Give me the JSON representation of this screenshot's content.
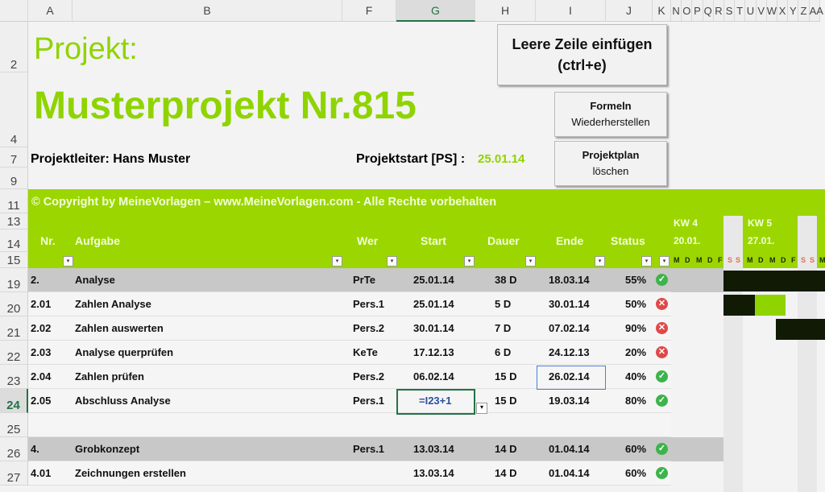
{
  "columns": [
    "A",
    "B",
    "F",
    "G",
    "H",
    "I",
    "J",
    "K",
    "N",
    "O",
    "P",
    "Q",
    "R",
    "S",
    "T",
    "U",
    "V",
    "W",
    "X",
    "Y",
    "Z",
    "AA"
  ],
  "row_numbers": [
    "2",
    "4",
    "7",
    "9",
    "11",
    "13",
    "14",
    "15",
    "19",
    "20",
    "21",
    "22",
    "23",
    "24",
    "25",
    "26",
    "27"
  ],
  "title": {
    "label": "Projekt:",
    "name": "Musterprojekt Nr.815"
  },
  "leader": "Projektleiter: Hans Muster",
  "start": {
    "label": "Projektstart [PS] :",
    "value": "25.01.14"
  },
  "buttons": {
    "insert_line1": "Leere Zeile einfügen",
    "insert_line2": "(ctrl+e)",
    "restore_line1": "Formeln",
    "restore_line2": "Wiederherstellen",
    "delete_line1": "Projektplan",
    "delete_line2": "löschen"
  },
  "copyright": "© Copyright by MeineVorlagen – www.MeineVorlagen.com - Alle Rechte vorbehalten",
  "headers": {
    "nr": "Nr.",
    "task": "Aufgabe",
    "who": "Wer",
    "start": "Start",
    "duration": "Dauer",
    "end": "Ende",
    "status": "Status"
  },
  "gantt": {
    "weeks": [
      {
        "kw": "KW 4",
        "date": "20.01."
      },
      {
        "kw": "KW 5",
        "date": "27.01."
      }
    ],
    "days": [
      "M",
      "D",
      "M",
      "D",
      "F",
      "S",
      "S",
      "M",
      "D",
      "M",
      "D",
      "F",
      "S",
      "S",
      "M"
    ]
  },
  "rows": [
    {
      "nr": "2.",
      "task": "Analyse",
      "who": "PrTe",
      "start": "25.01.14",
      "duration": "38 D",
      "end": "18.03.14",
      "status": "55%",
      "icon": "ok",
      "group": true
    },
    {
      "nr": "2.01",
      "task": "Zahlen Analyse",
      "who": "Pers.1",
      "start": "25.01.14",
      "duration": "5 D",
      "end": "30.01.14",
      "status": "50%",
      "icon": "x"
    },
    {
      "nr": "2.02",
      "task": "Zahlen auswerten",
      "who": "Pers.2",
      "start": "30.01.14",
      "duration": "7 D",
      "end": "07.02.14",
      "status": "90%",
      "icon": "x"
    },
    {
      "nr": "2.03",
      "task": "Analyse querprüfen",
      "who": "KeTe",
      "start": "17.12.13",
      "duration": "6 D",
      "end": "24.12.13",
      "status": "20%",
      "icon": "x"
    },
    {
      "nr": "2.04",
      "task": "Zahlen prüfen",
      "who": "Pers.2",
      "start": "06.02.14",
      "duration": "15 D",
      "end": "26.02.14",
      "status": "40%",
      "icon": "ok"
    },
    {
      "nr": "2.05",
      "task": "Abschluss Analyse",
      "who": "Pers.1",
      "start": "=I23+1",
      "duration": "15 D",
      "end": "19.03.14",
      "status": "80%",
      "icon": "ok"
    },
    {
      "nr": "",
      "task": "",
      "who": "",
      "start": "",
      "duration": "",
      "end": "",
      "status": "",
      "icon": ""
    },
    {
      "nr": "4.",
      "task": "Grobkonzept",
      "who": "Pers.1",
      "start": "13.03.14",
      "duration": "14 D",
      "end": "01.04.14",
      "status": "60%",
      "icon": "ok",
      "group": true
    },
    {
      "nr": "4.01",
      "task": "Zeichnungen erstellen",
      "who": "",
      "start": "13.03.14",
      "duration": "14 D",
      "end": "01.04.14",
      "status": "60%",
      "icon": "ok"
    }
  ],
  "colors": {
    "accent": "#9cd600",
    "title": "#8fd400",
    "bar_dark": "#111a05",
    "ok": "#3cb44b",
    "error": "#e04848"
  }
}
